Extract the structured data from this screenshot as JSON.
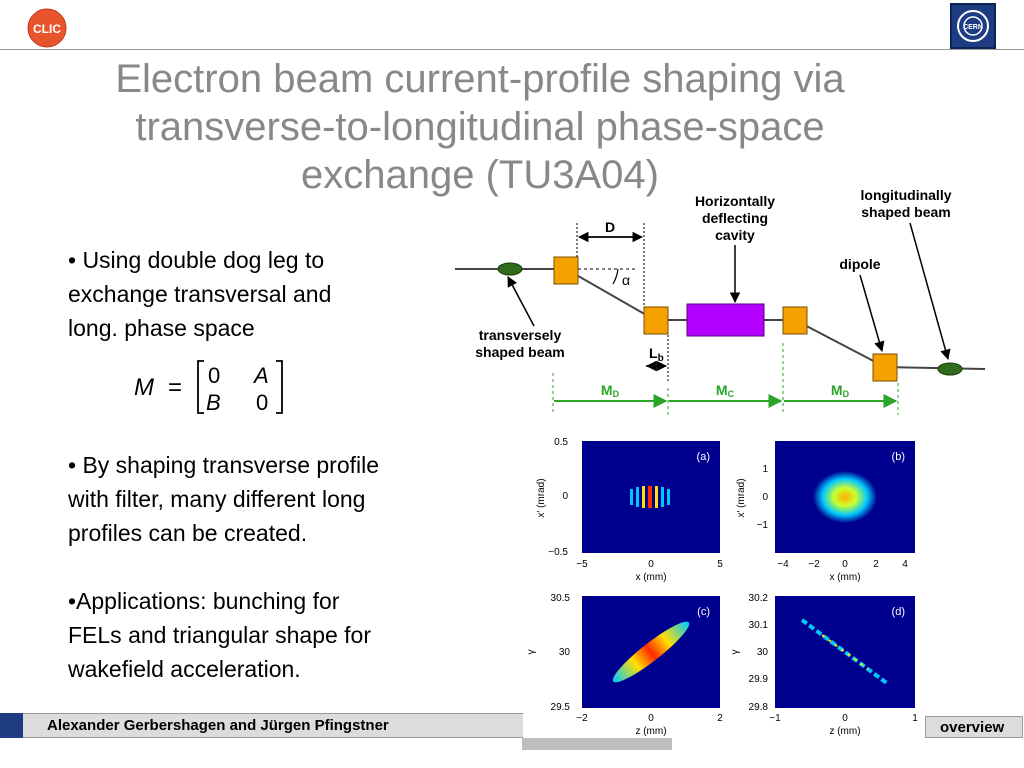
{
  "header": {
    "clic_logo_text": "CLIC",
    "cern_logo_text": "CERN",
    "title": "Electron beam current-profile shaping via\ntransverse-to-longitudinal phase-space\nexchange (TU3A04)"
  },
  "bullets": [
    "• Using double dog leg to\nexchange transversal and\nlong. phase space",
    "• By shaping transverse profile\nwith filter, many different long\nprofiles can be created.",
    "•Applications: bunching for\nFELs and triangular shape for\nwakefield acceleration."
  ],
  "matrix": {
    "lhs": "M",
    "eq": "=",
    "a11": "0",
    "a12": "A",
    "a21": "B",
    "a22": "0"
  },
  "beamline": {
    "label_D": "D",
    "label_alpha": "α",
    "label_Lb": "L",
    "label_Lb_sub": "b",
    "label_cavity_1": "Horizontally",
    "label_cavity_2": "deflecting",
    "label_cavity_3": "cavity",
    "label_long_1": "longitudinally",
    "label_long_2": "shaped beam",
    "label_dipole": "dipole",
    "label_trans_1": "transversely",
    "label_trans_2": "shaped beam",
    "label_MD1": "M",
    "label_MD1_sub": "D",
    "label_MC": "M",
    "label_MC_sub": "C",
    "label_MD2": "M",
    "label_MD2_sub": "D",
    "colors": {
      "dipole": "#f5a100",
      "cavity": "#b400ff",
      "beam": "#2e6b1a",
      "arrow": "#2aa52a"
    }
  },
  "plots": {
    "a": {
      "tag": "(a)",
      "ylabel": "x′ (mrad)",
      "xlabel": "x (mm)",
      "yticks": [
        "0.5",
        "0",
        "−0.5"
      ],
      "xticks": [
        "−5",
        "0",
        "5"
      ]
    },
    "b": {
      "tag": "(b)",
      "ylabel": "x′ (mrad)",
      "xlabel": "x (mm)",
      "yticks": [
        "1",
        "0",
        "−1"
      ],
      "xticks": [
        "−4",
        "−2",
        "0",
        "2",
        "4"
      ]
    },
    "c": {
      "tag": "(c)",
      "ylabel": "γ",
      "xlabel": "z (mm)",
      "yticks": [
        "30.5",
        "30",
        "29.5"
      ],
      "xticks": [
        "−2",
        "0",
        "2"
      ]
    },
    "d": {
      "tag": "(d)",
      "ylabel": "γ",
      "xlabel": "z (mm)",
      "yticks": [
        "30.2",
        "30.1",
        "30",
        "29.9",
        "29.8"
      ],
      "xticks": [
        "−1",
        "0",
        "1"
      ]
    },
    "colors": {
      "background": "#00008f",
      "mid": "#00c8ff",
      "hot": "#ff2a00",
      "warm": "#ffe000"
    }
  },
  "footer": {
    "authors": "Alexander Gerbershagen and Jürgen Pfingstner",
    "right_text": "overview"
  }
}
